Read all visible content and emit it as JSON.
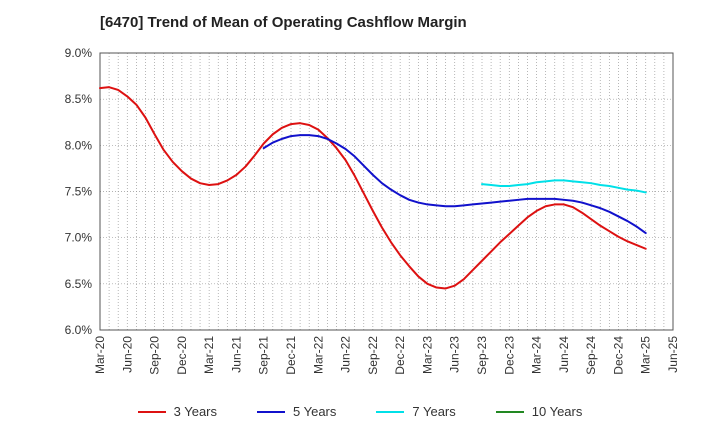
{
  "chart_data": {
    "type": "line",
    "title": "[6470]  Trend of Mean of Operating Cashflow Margin",
    "xlabel": "",
    "ylabel": "",
    "y_range": [
      6.0,
      9.0
    ],
    "y_unit": "%",
    "y_ticks": [
      "6.0%",
      "6.5%",
      "7.0%",
      "7.5%",
      "8.0%",
      "8.5%",
      "9.0%"
    ],
    "x_ticks": [
      "Mar-20",
      "Jun-20",
      "Sep-20",
      "Dec-20",
      "Mar-21",
      "Jun-21",
      "Sep-21",
      "Dec-21",
      "Mar-22",
      "Jun-22",
      "Sep-22",
      "Dec-22",
      "Mar-23",
      "Jun-23",
      "Sep-23",
      "Dec-23",
      "Mar-24",
      "Jun-24",
      "Sep-24",
      "Dec-24",
      "Mar-25",
      "Jun-25"
    ],
    "grid": true,
    "legend_position": "bottom",
    "series": [
      {
        "name": "3 Years",
        "color": "#dd1111",
        "values": [
          [
            "2020-03",
            8.62
          ],
          [
            "2020-04",
            8.63
          ],
          [
            "2020-05",
            8.6
          ],
          [
            "2020-06",
            8.53
          ],
          [
            "2020-07",
            8.44
          ],
          [
            "2020-08",
            8.3
          ],
          [
            "2020-09",
            8.12
          ],
          [
            "2020-10",
            7.95
          ],
          [
            "2020-11",
            7.82
          ],
          [
            "2020-12",
            7.72
          ],
          [
            "2021-01",
            7.64
          ],
          [
            "2021-02",
            7.59
          ],
          [
            "2021-03",
            7.57
          ],
          [
            "2021-04",
            7.58
          ],
          [
            "2021-05",
            7.62
          ],
          [
            "2021-06",
            7.68
          ],
          [
            "2021-07",
            7.77
          ],
          [
            "2021-08",
            7.89
          ],
          [
            "2021-09",
            8.02
          ],
          [
            "2021-10",
            8.12
          ],
          [
            "2021-11",
            8.19
          ],
          [
            "2021-12",
            8.23
          ],
          [
            "2022-01",
            8.24
          ],
          [
            "2022-02",
            8.22
          ],
          [
            "2022-03",
            8.17
          ],
          [
            "2022-04",
            8.08
          ],
          [
            "2022-05",
            7.97
          ],
          [
            "2022-06",
            7.84
          ],
          [
            "2022-07",
            7.67
          ],
          [
            "2022-08",
            7.48
          ],
          [
            "2022-09",
            7.29
          ],
          [
            "2022-10",
            7.11
          ],
          [
            "2022-11",
            6.95
          ],
          [
            "2022-12",
            6.81
          ],
          [
            "2023-01",
            6.69
          ],
          [
            "2023-02",
            6.58
          ],
          [
            "2023-03",
            6.5
          ],
          [
            "2023-04",
            6.46
          ],
          [
            "2023-05",
            6.45
          ],
          [
            "2023-06",
            6.48
          ],
          [
            "2023-07",
            6.55
          ],
          [
            "2023-08",
            6.65
          ],
          [
            "2023-09",
            6.75
          ],
          [
            "2023-10",
            6.85
          ],
          [
            "2023-11",
            6.95
          ],
          [
            "2023-12",
            7.04
          ],
          [
            "2024-01",
            7.13
          ],
          [
            "2024-02",
            7.22
          ],
          [
            "2024-03",
            7.29
          ],
          [
            "2024-04",
            7.34
          ],
          [
            "2024-05",
            7.36
          ],
          [
            "2024-06",
            7.36
          ],
          [
            "2024-07",
            7.33
          ],
          [
            "2024-08",
            7.27
          ],
          [
            "2024-09",
            7.2
          ],
          [
            "2024-10",
            7.13
          ],
          [
            "2024-11",
            7.07
          ],
          [
            "2024-12",
            7.01
          ],
          [
            "2025-01",
            6.96
          ],
          [
            "2025-02",
            6.92
          ],
          [
            "2025-03",
            6.88
          ]
        ]
      },
      {
        "name": "5 Years",
        "color": "#1111cc",
        "values": [
          [
            "2021-09",
            7.97
          ],
          [
            "2021-10",
            8.03
          ],
          [
            "2021-11",
            8.07
          ],
          [
            "2021-12",
            8.1
          ],
          [
            "2022-01",
            8.11
          ],
          [
            "2022-02",
            8.11
          ],
          [
            "2022-03",
            8.1
          ],
          [
            "2022-04",
            8.07
          ],
          [
            "2022-05",
            8.02
          ],
          [
            "2022-06",
            7.96
          ],
          [
            "2022-07",
            7.88
          ],
          [
            "2022-08",
            7.78
          ],
          [
            "2022-09",
            7.68
          ],
          [
            "2022-10",
            7.59
          ],
          [
            "2022-11",
            7.52
          ],
          [
            "2022-12",
            7.46
          ],
          [
            "2023-01",
            7.41
          ],
          [
            "2023-02",
            7.38
          ],
          [
            "2023-03",
            7.36
          ],
          [
            "2023-04",
            7.35
          ],
          [
            "2023-05",
            7.34
          ],
          [
            "2023-06",
            7.34
          ],
          [
            "2023-07",
            7.35
          ],
          [
            "2023-08",
            7.36
          ],
          [
            "2023-09",
            7.37
          ],
          [
            "2023-10",
            7.38
          ],
          [
            "2023-11",
            7.39
          ],
          [
            "2023-12",
            7.4
          ],
          [
            "2024-01",
            7.41
          ],
          [
            "2024-02",
            7.42
          ],
          [
            "2024-03",
            7.42
          ],
          [
            "2024-04",
            7.42
          ],
          [
            "2024-05",
            7.42
          ],
          [
            "2024-06",
            7.41
          ],
          [
            "2024-07",
            7.4
          ],
          [
            "2024-08",
            7.38
          ],
          [
            "2024-09",
            7.35
          ],
          [
            "2024-10",
            7.32
          ],
          [
            "2024-11",
            7.28
          ],
          [
            "2024-12",
            7.23
          ],
          [
            "2025-01",
            7.18
          ],
          [
            "2025-02",
            7.12
          ],
          [
            "2025-03",
            7.05
          ]
        ]
      },
      {
        "name": "7 Years",
        "color": "#00e0e8",
        "values": [
          [
            "2023-09",
            7.58
          ],
          [
            "2023-10",
            7.57
          ],
          [
            "2023-11",
            7.56
          ],
          [
            "2023-12",
            7.56
          ],
          [
            "2024-01",
            7.57
          ],
          [
            "2024-02",
            7.58
          ],
          [
            "2024-03",
            7.6
          ],
          [
            "2024-04",
            7.61
          ],
          [
            "2024-05",
            7.62
          ],
          [
            "2024-06",
            7.62
          ],
          [
            "2024-07",
            7.61
          ],
          [
            "2024-08",
            7.6
          ],
          [
            "2024-09",
            7.59
          ],
          [
            "2024-10",
            7.57
          ],
          [
            "2024-11",
            7.56
          ],
          [
            "2024-12",
            7.54
          ],
          [
            "2025-01",
            7.52
          ],
          [
            "2025-02",
            7.51
          ],
          [
            "2025-03",
            7.49
          ]
        ]
      },
      {
        "name": "10 Years",
        "color": "#228822",
        "values": []
      }
    ]
  }
}
